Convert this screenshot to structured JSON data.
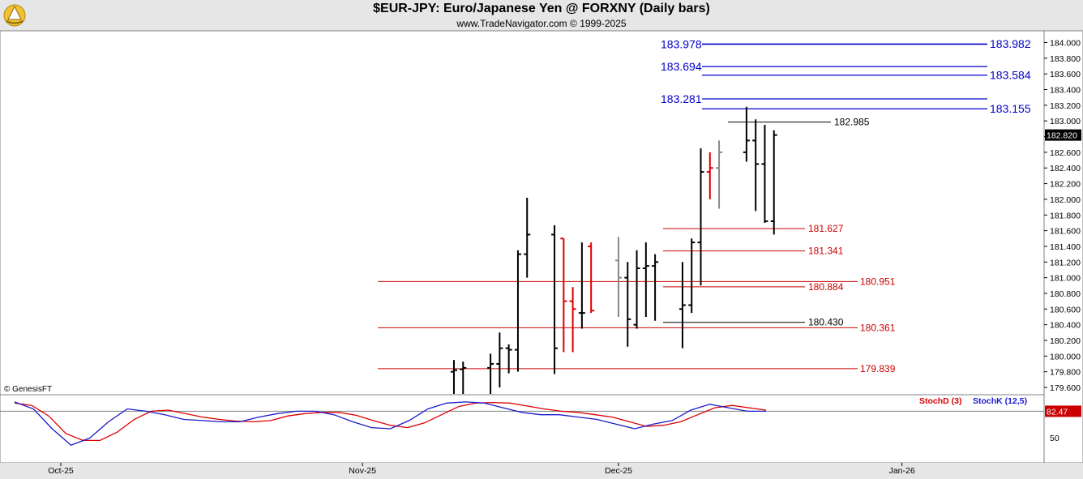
{
  "header": {
    "title": "$EUR-JPY:  Euro/Japanese Yen @ FORXNY  (Daily bars)",
    "subtitle": "www.TradeNavigator.com © 1999-2025",
    "logo_icon": "trade-navigator-logo-icon"
  },
  "copyright": "© GenesisFT",
  "chart_data": [
    {
      "type": "ohlc",
      "title": "$EUR-JPY:  Euro/Japanese Yen @ FORXNY  (Daily bars)",
      "ylim": [
        179.5,
        184.1
      ],
      "y_ticks": [
        "179.600",
        "179.800",
        "180.000",
        "180.200",
        "180.400",
        "180.600",
        "180.800",
        "181.000",
        "181.200",
        "181.400",
        "181.600",
        "181.800",
        "182.000",
        "182.200",
        "182.400",
        "182.600",
        "182.800",
        "183.000",
        "183.200",
        "183.400",
        "183.600",
        "183.800",
        "184.000"
      ],
      "x_ticks": [
        {
          "label": "Oct-25",
          "date": "2025-10-01"
        },
        {
          "label": "Nov-25",
          "date": "2025-11-03"
        },
        {
          "label": "Dec-25",
          "date": "2025-12-01"
        },
        {
          "label": "Jan-26",
          "date": "2026-01-01"
        }
      ],
      "last_price": "182.820",
      "bars": [
        {
          "date": "2025-11-13",
          "o": 179.8,
          "h": 179.95,
          "l": 179.5,
          "c": 179.82,
          "color": "#000000"
        },
        {
          "date": "2025-11-14",
          "o": 179.83,
          "h": 179.93,
          "l": 179.5,
          "c": 179.85,
          "color": "#000000"
        },
        {
          "date": "2025-11-17",
          "o": 179.85,
          "h": 180.03,
          "l": 179.5,
          "c": 179.9,
          "color": "#000000"
        },
        {
          "date": "2025-11-18",
          "o": 179.9,
          "h": 180.3,
          "l": 179.6,
          "c": 180.1,
          "color": "#000000"
        },
        {
          "date": "2025-11-19",
          "o": 180.1,
          "h": 180.15,
          "l": 179.78,
          "c": 180.08,
          "color": "#000000"
        },
        {
          "date": "2025-11-20",
          "o": 180.08,
          "h": 181.35,
          "l": 179.8,
          "c": 181.3,
          "color": "#000000"
        },
        {
          "date": "2025-11-21",
          "o": 181.3,
          "h": 182.02,
          "l": 181.0,
          "c": 181.55,
          "color": "#000000"
        },
        {
          "date": "2025-11-24",
          "o": 181.55,
          "h": 181.67,
          "l": 179.77,
          "c": 180.1,
          "color": "#000000"
        },
        {
          "date": "2025-11-25",
          "o": 181.5,
          "h": 181.5,
          "l": 180.05,
          "c": 180.7,
          "color": "#dd0000"
        },
        {
          "date": "2025-11-26",
          "o": 180.7,
          "h": 180.88,
          "l": 180.05,
          "c": 180.6,
          "color": "#dd0000"
        },
        {
          "date": "2025-11-27",
          "o": 180.55,
          "h": 181.45,
          "l": 180.35,
          "c": 180.55,
          "color": "#000000"
        },
        {
          "date": "2025-11-28",
          "o": 181.4,
          "h": 181.45,
          "l": 180.55,
          "c": 180.58,
          "color": "#dd0000"
        },
        {
          "date": "2025-12-01",
          "o": 181.22,
          "h": 181.52,
          "l": 180.5,
          "c": 181.0,
          "color": "#888888"
        },
        {
          "date": "2025-12-02",
          "o": 181.0,
          "h": 181.2,
          "l": 180.12,
          "c": 180.47,
          "color": "#000000"
        },
        {
          "date": "2025-12-03",
          "o": 180.4,
          "h": 181.35,
          "l": 180.35,
          "c": 181.12,
          "color": "#000000"
        },
        {
          "date": "2025-12-04",
          "o": 181.12,
          "h": 181.45,
          "l": 180.5,
          "c": 181.15,
          "color": "#000000"
        },
        {
          "date": "2025-12-05",
          "o": 181.15,
          "h": 181.3,
          "l": 180.45,
          "c": 181.2,
          "color": "#000000"
        },
        {
          "date": "2025-12-08",
          "o": 180.6,
          "h": 181.2,
          "l": 180.1,
          "c": 180.65,
          "color": "#000000"
        },
        {
          "date": "2025-12-09",
          "o": 180.65,
          "h": 181.5,
          "l": 180.55,
          "c": 181.45,
          "color": "#000000"
        },
        {
          "date": "2025-12-10",
          "o": 181.45,
          "h": 182.65,
          "l": 180.9,
          "c": 182.35,
          "color": "#000000"
        },
        {
          "date": "2025-12-11",
          "o": 182.35,
          "h": 182.6,
          "l": 182.0,
          "c": 182.4,
          "color": "#dd0000"
        },
        {
          "date": "2025-12-12",
          "o": 182.4,
          "h": 182.75,
          "l": 181.88,
          "c": 182.6,
          "color": "#888888"
        },
        {
          "date": "2025-12-15",
          "o": 182.6,
          "h": 183.18,
          "l": 182.48,
          "c": 182.75,
          "color": "#000000"
        },
        {
          "date": "2025-12-16",
          "o": 182.75,
          "h": 183.02,
          "l": 181.85,
          "c": 182.45,
          "color": "#000000"
        },
        {
          "date": "2025-12-17",
          "o": 182.45,
          "h": 182.95,
          "l": 181.7,
          "c": 181.72,
          "color": "#000000"
        },
        {
          "date": "2025-12-18",
          "o": 181.72,
          "h": 182.88,
          "l": 181.55,
          "c": 182.82,
          "color": "#000000"
        }
      ],
      "levels": [
        {
          "value": 183.978,
          "label": "183.978",
          "color": "#0000cc",
          "side": "left"
        },
        {
          "value": 183.982,
          "label": "183.982",
          "color": "#0000cc",
          "side": "right"
        },
        {
          "value": 183.694,
          "label": "183.694",
          "color": "#0000cc",
          "side": "left"
        },
        {
          "value": 183.584,
          "label": "183.584",
          "color": "#0000cc",
          "side": "right"
        },
        {
          "value": 183.281,
          "label": "183.281",
          "color": "#0000cc",
          "side": "left"
        },
        {
          "value": 183.155,
          "label": "183.155",
          "color": "#0000cc",
          "side": "right"
        },
        {
          "value": 182.985,
          "label": "182.985",
          "color": "#000000",
          "side": "mid"
        },
        {
          "value": 181.627,
          "label": "181.627",
          "color": "#cc0000",
          "side": "mid"
        },
        {
          "value": 181.341,
          "label": "181.341",
          "color": "#cc0000",
          "side": "mid"
        },
        {
          "value": 180.951,
          "label": "180.951",
          "color": "#cc0000",
          "side": "long"
        },
        {
          "value": 180.884,
          "label": "180.884",
          "color": "#cc0000",
          "side": "mid"
        },
        {
          "value": 180.43,
          "label": "180.430",
          "color": "#000000",
          "side": "mid"
        },
        {
          "value": 180.361,
          "label": "180.361",
          "color": "#cc0000",
          "side": "long"
        },
        {
          "value": 179.839,
          "label": "179.839",
          "color": "#cc0000",
          "side": "long"
        }
      ]
    },
    {
      "type": "line",
      "ylim": [
        0,
        100
      ],
      "y_ticks": [
        "50"
      ],
      "last_value": "82.47",
      "legend": [
        "StochD (3)",
        "StochK (12,5)"
      ],
      "series": [
        {
          "name": "StochD (3)",
          "color": "#dd0000",
          "values": [
            94,
            90,
            72,
            42,
            30,
            30,
            44,
            66,
            80,
            82,
            76,
            70,
            66,
            63,
            62,
            64,
            72,
            76,
            78,
            78,
            73,
            64,
            56,
            52,
            60,
            74,
            88,
            94,
            95,
            94,
            89,
            84,
            80,
            78,
            74,
            70,
            62,
            54,
            56,
            62,
            74,
            86,
            90,
            86,
            82
          ]
        },
        {
          "name": "StochK (12,5)",
          "color": "#1a1acc",
          "values": [
            96,
            84,
            50,
            22,
            34,
            62,
            84,
            80,
            74,
            66,
            64,
            62,
            62,
            70,
            76,
            80,
            80,
            74,
            62,
            52,
            50,
            64,
            84,
            94,
            96,
            94,
            86,
            78,
            74,
            74,
            70,
            66,
            58,
            50,
            58,
            64,
            82,
            92,
            86,
            80,
            80
          ]
        }
      ]
    }
  ]
}
